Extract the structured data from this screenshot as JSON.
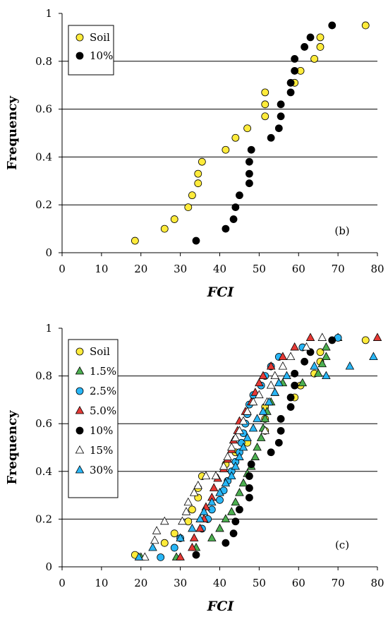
{
  "chart_data": [
    {
      "type": "scatter",
      "panel_label": "(b)",
      "xlabel": "FCI",
      "ylabel": "Frequency",
      "xlim": [
        0,
        80
      ],
      "ylim": [
        0,
        1
      ],
      "xticks": [
        "0",
        "10",
        "20",
        "30",
        "40",
        "50",
        "60",
        "70",
        "80"
      ],
      "yticks": [
        "0",
        "0.2",
        "0.4",
        "0.6",
        "0.8",
        "1"
      ],
      "grid": "horizontal",
      "legend_position": "top-left",
      "series": [
        {
          "name": "Soil",
          "color": "#FFEB3B",
          "marker": "circle",
          "points": [
            [
              18.5,
              0.05
            ],
            [
              26,
              0.1
            ],
            [
              28.5,
              0.14
            ],
            [
              32,
              0.19
            ],
            [
              33,
              0.24
            ],
            [
              34.5,
              0.29
            ],
            [
              34.5,
              0.33
            ],
            [
              35.5,
              0.38
            ],
            [
              41.5,
              0.43
            ],
            [
              44,
              0.48
            ],
            [
              47,
              0.52
            ],
            [
              51.5,
              0.57
            ],
            [
              51.5,
              0.62
            ],
            [
              51.5,
              0.67
            ],
            [
              59,
              0.71
            ],
            [
              60.5,
              0.76
            ],
            [
              64,
              0.81
            ],
            [
              65.5,
              0.86
            ],
            [
              65.5,
              0.9
            ],
            [
              77,
              0.95
            ]
          ]
        },
        {
          "name": "10%",
          "color": "#000000",
          "marker": "circle",
          "points": [
            [
              34,
              0.05
            ],
            [
              41.5,
              0.1
            ],
            [
              43.5,
              0.14
            ],
            [
              44,
              0.19
            ],
            [
              45,
              0.24
            ],
            [
              47.5,
              0.29
            ],
            [
              47.5,
              0.33
            ],
            [
              47.5,
              0.38
            ],
            [
              48,
              0.43
            ],
            [
              53,
              0.48
            ],
            [
              55,
              0.52
            ],
            [
              55.5,
              0.57
            ],
            [
              55.5,
              0.62
            ],
            [
              58,
              0.67
            ],
            [
              58,
              0.71
            ],
            [
              59,
              0.76
            ],
            [
              59,
              0.81
            ],
            [
              61.5,
              0.86
            ],
            [
              63,
              0.9
            ],
            [
              68.5,
              0.95
            ]
          ]
        }
      ]
    },
    {
      "type": "scatter",
      "panel_label": "(c)",
      "xlabel": "FCI",
      "ylabel": "Frequency",
      "xlim": [
        0,
        80
      ],
      "ylim": [
        0,
        1
      ],
      "xticks": [
        "0",
        "10",
        "20",
        "30",
        "40",
        "50",
        "60",
        "70",
        "80"
      ],
      "yticks": [
        "0",
        "0.2",
        "0.4",
        "0.6",
        "0.8",
        "1"
      ],
      "grid": "horizontal",
      "legend_position": "top-left",
      "series": [
        {
          "name": "Soil",
          "color": "#FFEB3B",
          "marker": "circle",
          "points": [
            [
              18.5,
              0.05
            ],
            [
              26,
              0.1
            ],
            [
              28.5,
              0.14
            ],
            [
              32,
              0.19
            ],
            [
              33,
              0.24
            ],
            [
              34.5,
              0.29
            ],
            [
              34.5,
              0.33
            ],
            [
              35.5,
              0.38
            ],
            [
              41.5,
              0.43
            ],
            [
              44,
              0.48
            ],
            [
              47,
              0.52
            ],
            [
              51.5,
              0.57
            ],
            [
              51.5,
              0.62
            ],
            [
              51.5,
              0.67
            ],
            [
              59,
              0.71
            ],
            [
              60.5,
              0.76
            ],
            [
              64,
              0.81
            ],
            [
              65.5,
              0.86
            ],
            [
              65.5,
              0.9
            ],
            [
              77,
              0.95
            ]
          ]
        },
        {
          "name": "1.5%",
          "color": "#4CAF50",
          "marker": "triangle",
          "points": [
            [
              20,
              0.04
            ],
            [
              29,
              0.04
            ],
            [
              34,
              0.08
            ],
            [
              38,
              0.12
            ],
            [
              40,
              0.16
            ],
            [
              41.5,
              0.2
            ],
            [
              43,
              0.23
            ],
            [
              44,
              0.27
            ],
            [
              45,
              0.31
            ],
            [
              46,
              0.35
            ],
            [
              47,
              0.39
            ],
            [
              48,
              0.42
            ],
            [
              49,
              0.46
            ],
            [
              49.5,
              0.5
            ],
            [
              50.5,
              0.54
            ],
            [
              51,
              0.58
            ],
            [
              51.5,
              0.62
            ],
            [
              52,
              0.65
            ],
            [
              53,
              0.69
            ],
            [
              54,
              0.73
            ],
            [
              56,
              0.77
            ],
            [
              61,
              0.77
            ],
            [
              65,
              0.81
            ],
            [
              66,
              0.85
            ],
            [
              67,
              0.88
            ],
            [
              67,
              0.92
            ],
            [
              70,
              0.96
            ]
          ]
        },
        {
          "name": "2.5%",
          "color": "#29B6F6",
          "marker": "circle",
          "points": [
            [
              25,
              0.04
            ],
            [
              28.5,
              0.08
            ],
            [
              30,
              0.12
            ],
            [
              35.5,
              0.16
            ],
            [
              37,
              0.2
            ],
            [
              38,
              0.24
            ],
            [
              40,
              0.28
            ],
            [
              41,
              0.32
            ],
            [
              42,
              0.36
            ],
            [
              43,
              0.4
            ],
            [
              44,
              0.44
            ],
            [
              45,
              0.48
            ],
            [
              45.5,
              0.52
            ],
            [
              46,
              0.56
            ],
            [
              46.5,
              0.6
            ],
            [
              47,
              0.64
            ],
            [
              47.5,
              0.68
            ],
            [
              48.5,
              0.72
            ],
            [
              50.5,
              0.76
            ],
            [
              51.5,
              0.8
            ],
            [
              53,
              0.84
            ],
            [
              55,
              0.88
            ],
            [
              61,
              0.92
            ],
            [
              70,
              0.96
            ]
          ]
        },
        {
          "name": "5.0%",
          "color": "#E53935",
          "marker": "triangle",
          "points": [
            [
              30,
              0.04
            ],
            [
              33,
              0.08
            ],
            [
              33.5,
              0.12
            ],
            [
              35,
              0.16
            ],
            [
              36,
              0.2
            ],
            [
              36.5,
              0.25
            ],
            [
              38,
              0.29
            ],
            [
              38.5,
              0.33
            ],
            [
              39.5,
              0.37
            ],
            [
              41,
              0.41
            ],
            [
              42,
              0.45
            ],
            [
              43,
              0.49
            ],
            [
              43.5,
              0.53
            ],
            [
              44.5,
              0.57
            ],
            [
              45,
              0.61
            ],
            [
              46.5,
              0.65
            ],
            [
              48,
              0.69
            ],
            [
              49,
              0.73
            ],
            [
              50,
              0.77
            ],
            [
              51,
              0.8
            ],
            [
              53,
              0.84
            ],
            [
              56,
              0.88
            ],
            [
              59,
              0.92
            ],
            [
              63,
              0.96
            ],
            [
              80,
              0.96
            ]
          ]
        },
        {
          "name": "10%",
          "color": "#000000",
          "marker": "circle",
          "points": [
            [
              34,
              0.05
            ],
            [
              41.5,
              0.1
            ],
            [
              43.5,
              0.14
            ],
            [
              44,
              0.19
            ],
            [
              45,
              0.24
            ],
            [
              47.5,
              0.29
            ],
            [
              47.5,
              0.33
            ],
            [
              47.5,
              0.38
            ],
            [
              48,
              0.43
            ],
            [
              53,
              0.48
            ],
            [
              55,
              0.52
            ],
            [
              55.5,
              0.57
            ],
            [
              55.5,
              0.62
            ],
            [
              58,
              0.67
            ],
            [
              58,
              0.71
            ],
            [
              59,
              0.76
            ],
            [
              59,
              0.81
            ],
            [
              61.5,
              0.86
            ],
            [
              63,
              0.9
            ],
            [
              68.5,
              0.95
            ]
          ]
        },
        {
          "name": "15%",
          "color": "#FFFFFF",
          "marker": "triangle",
          "points": [
            [
              21,
              0.04
            ],
            [
              23.5,
              0.11
            ],
            [
              24,
              0.15
            ],
            [
              26,
              0.19
            ],
            [
              30.5,
              0.19
            ],
            [
              31.5,
              0.23
            ],
            [
              32,
              0.27
            ],
            [
              33.5,
              0.31
            ],
            [
              34.5,
              0.34
            ],
            [
              36.5,
              0.38
            ],
            [
              39,
              0.38
            ],
            [
              41,
              0.42
            ],
            [
              42,
              0.46
            ],
            [
              43,
              0.5
            ],
            [
              44,
              0.54
            ],
            [
              45,
              0.57
            ],
            [
              46,
              0.61
            ],
            [
              47,
              0.65
            ],
            [
              48.5,
              0.69
            ],
            [
              50,
              0.72
            ],
            [
              51.5,
              0.57
            ],
            [
              52,
              0.69
            ],
            [
              53,
              0.76
            ],
            [
              54,
              0.8
            ],
            [
              56,
              0.84
            ],
            [
              58,
              0.88
            ],
            [
              62,
              0.92
            ],
            [
              66,
              0.96
            ]
          ]
        },
        {
          "name": "30%",
          "color": "#29B6F6",
          "marker": "triangle",
          "points": [
            [
              19.5,
              0.04
            ],
            [
              23,
              0.08
            ],
            [
              30,
              0.12
            ],
            [
              33,
              0.16
            ],
            [
              35,
              0.2
            ],
            [
              36,
              0.23
            ],
            [
              38,
              0.27
            ],
            [
              40,
              0.31
            ],
            [
              41.5,
              0.35
            ],
            [
              43,
              0.38
            ],
            [
              44,
              0.42
            ],
            [
              45,
              0.46
            ],
            [
              46,
              0.5
            ],
            [
              47,
              0.54
            ],
            [
              48.5,
              0.58
            ],
            [
              49.5,
              0.62
            ],
            [
              51,
              0.65
            ],
            [
              52.5,
              0.69
            ],
            [
              54,
              0.73
            ],
            [
              55,
              0.77
            ],
            [
              57,
              0.8
            ],
            [
              64,
              0.84
            ],
            [
              67,
              0.8
            ],
            [
              73,
              0.84
            ],
            [
              79,
              0.88
            ]
          ]
        }
      ]
    }
  ]
}
